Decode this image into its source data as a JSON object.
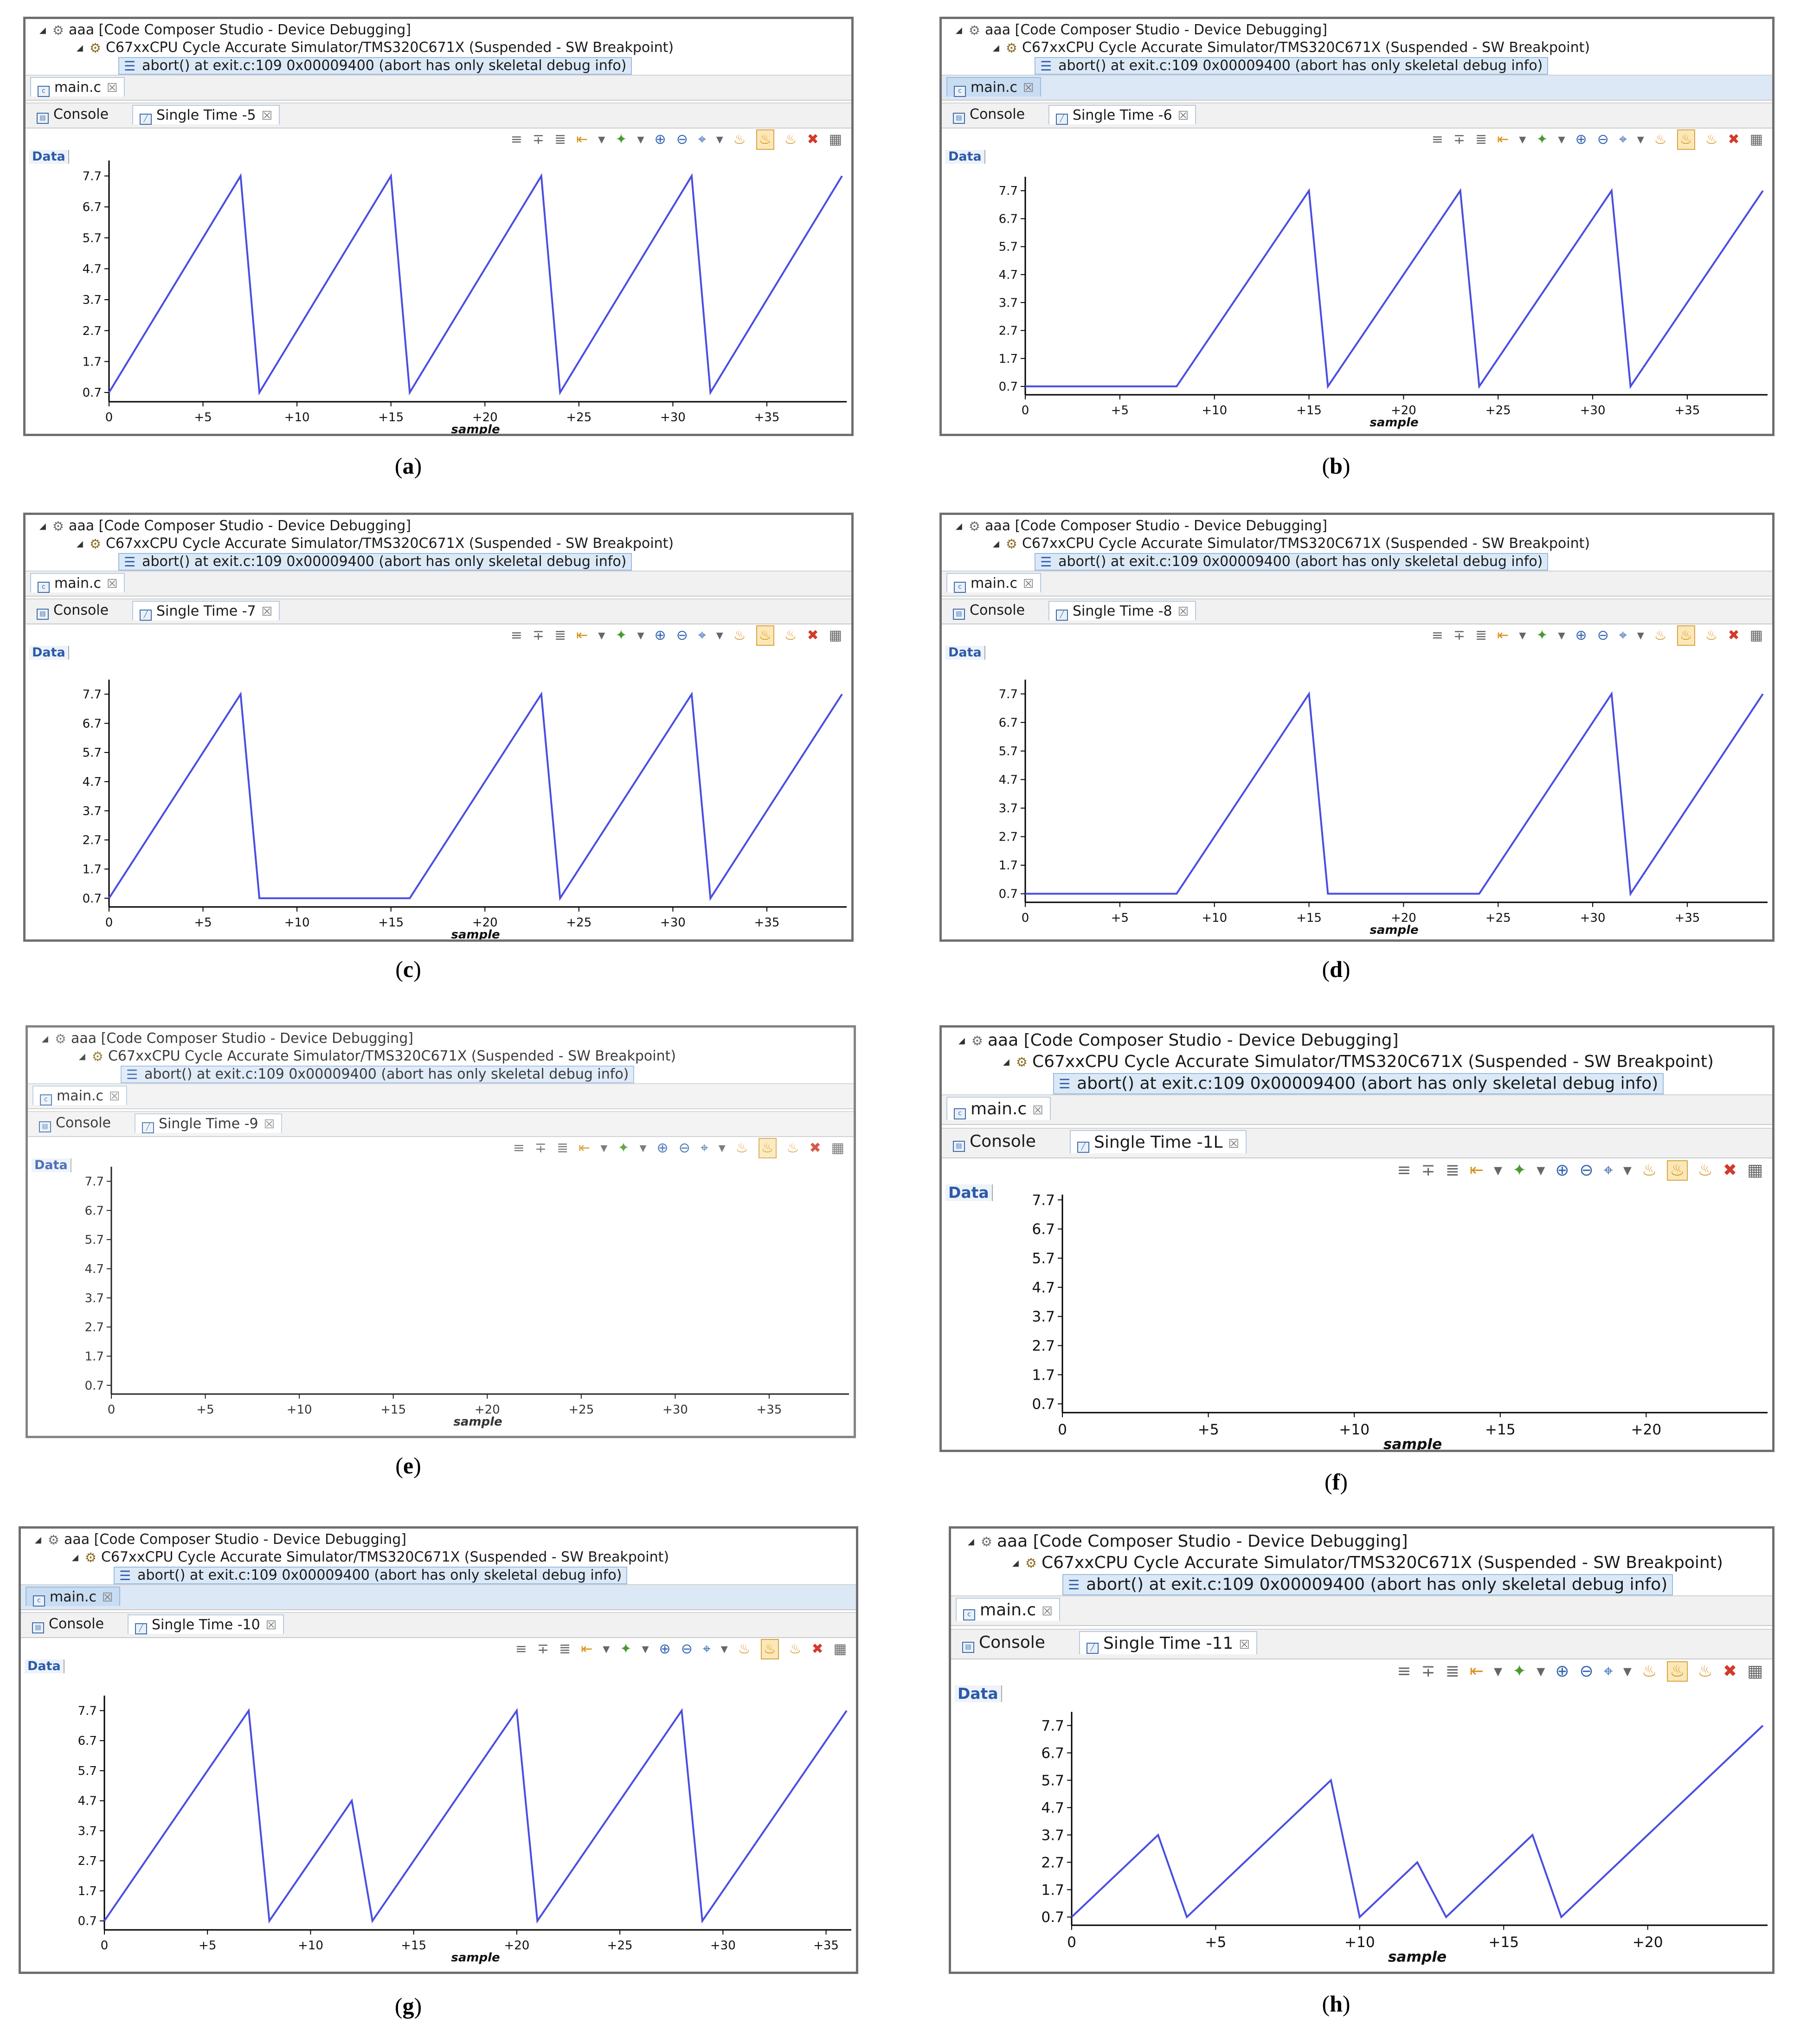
{
  "common": {
    "tree_root": "aaa [Code Composer Studio - Device Debugging]",
    "tree_cpu": "C67xxCPU Cycle Accurate Simulator/TMS320C671X (Suspended - SW Breakpoint)",
    "tree_frame": "abort() at exit.c:109 0x00009400  (abort has only skeletal debug info)",
    "tab_main": "main.c",
    "tab_console": "Console",
    "data_label": "Data",
    "xlabel": "sample",
    "close_glyph": "☒"
  },
  "panels": [
    {
      "id": "a",
      "tab_graph": "Single Time -5",
      "caption_letter": "a",
      "main_tab_highlight": false
    },
    {
      "id": "b",
      "tab_graph": "Single Time -6",
      "caption_letter": "b",
      "main_tab_highlight": true
    },
    {
      "id": "c",
      "tab_graph": "Single Time -7",
      "caption_letter": "c",
      "main_tab_highlight": false
    },
    {
      "id": "d",
      "tab_graph": "Single Time -8",
      "caption_letter": "d",
      "main_tab_highlight": false
    },
    {
      "id": "e",
      "tab_graph": "Single Time -9",
      "caption_letter": "e",
      "main_tab_highlight": false
    },
    {
      "id": "f",
      "tab_graph": "Single Time -1L",
      "caption_letter": "f",
      "main_tab_highlight": false
    },
    {
      "id": "g",
      "tab_graph": "Single Time -10",
      "caption_letter": "g",
      "main_tab_highlight": true
    },
    {
      "id": "h",
      "tab_graph": "Single Time -11",
      "caption_letter": "h",
      "main_tab_highlight": false
    }
  ],
  "chart_data": [
    {
      "panel": "a",
      "type": "line",
      "xlabel": "sample",
      "ylabel": "",
      "yticks": [
        "7.7",
        "6.7",
        "5.7",
        "4.7",
        "3.7",
        "2.7",
        "1.7",
        "0.7"
      ],
      "xticks": [
        "0",
        "+5",
        "+10",
        "+15",
        "+20",
        "+25",
        "+30",
        "+35"
      ],
      "xlim": [
        0,
        39
      ],
      "ylim": [
        0.4,
        8.2
      ],
      "series": [
        {
          "color": "#4a4ee0",
          "x": [
            0,
            7,
            8,
            15,
            16,
            23,
            24,
            31,
            32,
            39
          ],
          "y": [
            0.7,
            7.7,
            0.7,
            7.7,
            0.7,
            7.7,
            0.7,
            7.7,
            0.7,
            7.7
          ]
        }
      ]
    },
    {
      "panel": "b",
      "type": "line",
      "xlabel": "sample",
      "ylabel": "",
      "yticks": [
        "7.7",
        "6.7",
        "5.7",
        "4.7",
        "3.7",
        "2.7",
        "1.7",
        "0.7"
      ],
      "xticks": [
        "0",
        "+5",
        "+10",
        "+15",
        "+20",
        "+25",
        "+30",
        "+35"
      ],
      "xlim": [
        0,
        39
      ],
      "ylim": [
        0.4,
        8.2
      ],
      "series": [
        {
          "color": "#4a4ee0",
          "x": [
            0,
            8,
            15,
            16,
            23,
            24,
            31,
            32,
            39
          ],
          "y": [
            0.7,
            0.7,
            7.7,
            0.7,
            7.7,
            0.7,
            7.7,
            0.7,
            7.7
          ]
        }
      ]
    },
    {
      "panel": "c",
      "type": "line",
      "xlabel": "sample",
      "ylabel": "",
      "yticks": [
        "7.7",
        "6.7",
        "5.7",
        "4.7",
        "3.7",
        "2.7",
        "1.7",
        "0.7"
      ],
      "xticks": [
        "0",
        "+5",
        "+10",
        "+15",
        "+20",
        "+25",
        "+30",
        "+35"
      ],
      "xlim": [
        0,
        39
      ],
      "ylim": [
        0.4,
        8.2
      ],
      "series": [
        {
          "color": "#4a4ee0",
          "x": [
            0,
            7,
            8,
            16,
            23,
            24,
            31,
            32,
            39
          ],
          "y": [
            0.7,
            7.7,
            0.7,
            0.7,
            7.7,
            0.7,
            7.7,
            0.7,
            7.7
          ]
        }
      ]
    },
    {
      "panel": "d",
      "type": "line",
      "xlabel": "sample",
      "ylabel": "",
      "yticks": [
        "7.7",
        "6.7",
        "5.7",
        "4.7",
        "3.7",
        "2.7",
        "1.7",
        "0.7"
      ],
      "xticks": [
        "0",
        "+5",
        "+10",
        "+15",
        "+20",
        "+25",
        "+30",
        "+35"
      ],
      "xlim": [
        0,
        39
      ],
      "ylim": [
        0.4,
        8.2
      ],
      "series": [
        {
          "color": "#4a4ee0",
          "x": [
            0,
            8,
            15,
            16,
            24,
            31,
            32,
            39
          ],
          "y": [
            0.7,
            0.7,
            7.7,
            0.7,
            0.7,
            7.7,
            0.7,
            7.7
          ]
        }
      ]
    },
    {
      "panel": "e",
      "type": "line",
      "xlabel": "sample",
      "ylabel": "",
      "yticks": [
        "7.7",
        "6.7",
        "5.7",
        "4.7",
        "3.7",
        "2.7",
        "1.7",
        "0.7"
      ],
      "xticks": [
        "0",
        "+5",
        "+10",
        "+15",
        "+20",
        "+25",
        "+30",
        "+35"
      ],
      "xlim": [
        0,
        39
      ],
      "ylim": [
        0.4,
        8.2
      ],
      "series": []
    },
    {
      "panel": "f",
      "type": "line",
      "xlabel": "sample",
      "ylabel": "",
      "yticks": [
        "7.7",
        "6.7",
        "5.7",
        "4.7",
        "3.7",
        "2.7",
        "1.7",
        "0.7"
      ],
      "xticks": [
        "0",
        "+5",
        "+10",
        "+15",
        "+20"
      ],
      "xlim": [
        0,
        24
      ],
      "ylim": [
        0.4,
        8.2
      ],
      "series": []
    },
    {
      "panel": "g",
      "type": "line",
      "xlabel": "sample",
      "ylabel": "",
      "yticks": [
        "7.7",
        "6.7",
        "5.7",
        "4.7",
        "3.7",
        "2.7",
        "1.7",
        "0.7"
      ],
      "xticks": [
        "0",
        "+5",
        "+10",
        "+15",
        "+20",
        "+25",
        "+30",
        "+35"
      ],
      "xlim": [
        0,
        36
      ],
      "ylim": [
        0.4,
        8.2
      ],
      "series": [
        {
          "color": "#4a4ee0",
          "x": [
            0,
            7,
            8,
            12,
            13,
            20,
            21,
            28,
            29,
            36
          ],
          "y": [
            0.7,
            7.7,
            0.7,
            4.7,
            0.7,
            7.7,
            0.7,
            7.7,
            0.7,
            7.7
          ]
        }
      ]
    },
    {
      "panel": "h",
      "type": "line",
      "xlabel": "sample",
      "ylabel": "",
      "yticks": [
        "7.7",
        "6.7",
        "5.7",
        "4.7",
        "3.7",
        "2.7",
        "1.7",
        "0.7"
      ],
      "xticks": [
        "0",
        "+5",
        "+10",
        "+15",
        "+20"
      ],
      "xlim": [
        0,
        24
      ],
      "ylim": [
        0.4,
        8.2
      ],
      "series": [
        {
          "color": "#4a4ee0",
          "x": [
            0,
            3,
            4,
            9,
            10,
            12,
            13,
            16,
            17,
            24
          ],
          "y": [
            0.7,
            3.7,
            0.7,
            5.7,
            0.7,
            2.7,
            0.7,
            3.7,
            0.7,
            7.7
          ]
        }
      ]
    }
  ]
}
